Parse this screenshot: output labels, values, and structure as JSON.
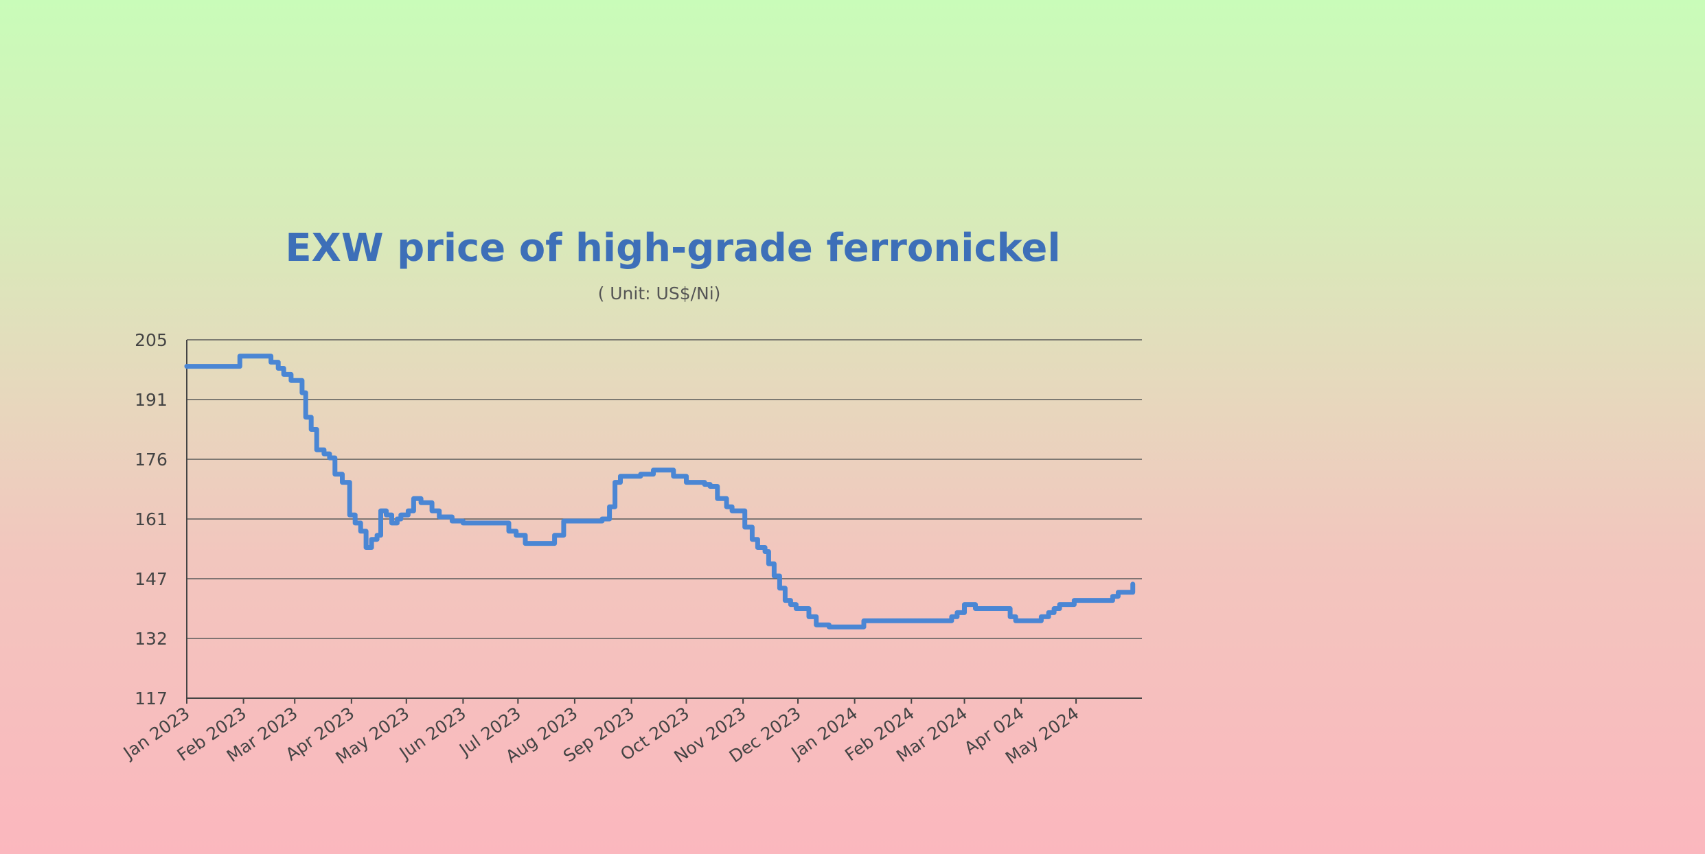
{
  "colors": {
    "line": "#4a86d4",
    "title": "#3d6fb8"
  },
  "chart_data": {
    "type": "line",
    "title": "EXW price of high-grade ferronickel",
    "subtitle": "( Unit: US$/Ni)",
    "xlabel": "",
    "ylabel": "",
    "ylim": [
      117,
      205
    ],
    "y_ticks": [
      "205",
      "191",
      "176",
      "161",
      "147",
      "132",
      "117"
    ],
    "x_ticks": [
      "Jan 2023",
      "Feb 2023",
      "Mar 2023",
      "Apr 2023",
      "May 2023",
      "Jun 2023",
      "Jul 2023",
      "Aug 2023",
      "Sep 2023",
      "Oct 2023",
      "Nov 2023",
      "Dec 2023",
      "Jan 2024",
      "Feb 2024",
      "Mar 2024",
      "Apr 024",
      "May 2024"
    ],
    "grid": true,
    "legend": "none",
    "series": [
      {
        "x": [
          "2023-01-01",
          "2023-01-27",
          "2023-01-30",
          "2023-02-13",
          "2023-02-16",
          "2023-02-20",
          "2023-02-23",
          "2023-02-27",
          "2023-03-03",
          "2023-03-05",
          "2023-03-07",
          "2023-03-10",
          "2023-03-13",
          "2023-03-17",
          "2023-03-20",
          "2023-03-23",
          "2023-03-27",
          "2023-03-31",
          "2023-04-03",
          "2023-04-06",
          "2023-04-09",
          "2023-04-12",
          "2023-04-15",
          "2023-04-17",
          "2023-04-20",
          "2023-04-23",
          "2023-04-26",
          "2023-04-28",
          "2023-05-02",
          "2023-05-05",
          "2023-05-09",
          "2023-05-12",
          "2023-05-15",
          "2023-05-19",
          "2023-05-23",
          "2023-05-26",
          "2023-06-01",
          "2023-06-05",
          "2023-06-15",
          "2023-06-21",
          "2023-06-26",
          "2023-06-30",
          "2023-07-05",
          "2023-07-18",
          "2023-07-21",
          "2023-07-26",
          "2023-07-30",
          "2023-08-04",
          "2023-08-07",
          "2023-08-16",
          "2023-08-20",
          "2023-08-23",
          "2023-08-26",
          "2023-08-30",
          "2023-09-06",
          "2023-09-13",
          "2023-09-20",
          "2023-09-24",
          "2023-10-01",
          "2023-10-04",
          "2023-10-11",
          "2023-10-14",
          "2023-10-18",
          "2023-10-23",
          "2023-10-26",
          "2023-10-30",
          "2023-11-02",
          "2023-11-06",
          "2023-11-09",
          "2023-11-13",
          "2023-11-15",
          "2023-11-18",
          "2023-11-21",
          "2023-11-24",
          "2023-11-27",
          "2023-11-30",
          "2023-12-04",
          "2023-12-07",
          "2023-12-11",
          "2023-12-18",
          "2023-12-25",
          "2024-01-01",
          "2024-01-06",
          "2024-01-13",
          "2024-01-20",
          "2024-02-03",
          "2024-02-17",
          "2024-02-23",
          "2024-02-26",
          "2024-03-01",
          "2024-03-04",
          "2024-03-07",
          "2024-03-14",
          "2024-03-21",
          "2024-03-26",
          "2024-03-29",
          "2024-04-05",
          "2024-04-09",
          "2024-04-12",
          "2024-04-16",
          "2024-04-19",
          "2024-04-22",
          "2024-04-25",
          "2024-04-30",
          "2024-05-07",
          "2024-05-14",
          "2024-05-21",
          "2024-05-24",
          "2024-05-27",
          "2024-06-01"
        ],
        "values": [
          198.5,
          198.5,
          201,
          201,
          199.5,
          198,
          196.5,
          195,
          195,
          192,
          186,
          183,
          178,
          177,
          176,
          172,
          170,
          162,
          160,
          158,
          154,
          156,
          157,
          163,
          162,
          160,
          161,
          162,
          163,
          166,
          165,
          165,
          163,
          161.5,
          161.5,
          160.5,
          160,
          160,
          160,
          160,
          158,
          157,
          155,
          155,
          157,
          160.5,
          160.5,
          160.5,
          160.5,
          161,
          164,
          170,
          171.5,
          171.5,
          172,
          173,
          173,
          171.5,
          170,
          170,
          169.5,
          169,
          166,
          164,
          163,
          163,
          159,
          156,
          154,
          153,
          150,
          147,
          144,
          141,
          140,
          139,
          139,
          137,
          135,
          134.5,
          134.5,
          134.5,
          136,
          136,
          136,
          136,
          136,
          137,
          138,
          140,
          140,
          139,
          139,
          139,
          137,
          136,
          136,
          136,
          137,
          138,
          139,
          140,
          140,
          141,
          141,
          141,
          142,
          143,
          143,
          145
        ]
      }
    ]
  }
}
